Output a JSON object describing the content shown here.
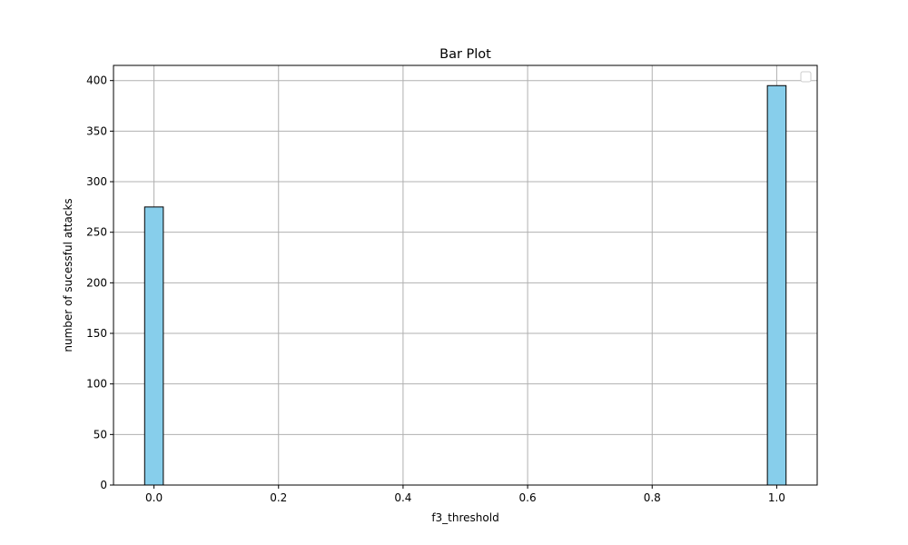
{
  "chart_data": {
    "type": "bar",
    "title": "Bar Plot",
    "xlabel": "f3_threshold",
    "ylabel": "number of sucessful attacks",
    "x": [
      0.0,
      1.0
    ],
    "values": [
      275,
      395
    ],
    "bar_width": 0.03,
    "xlim": [
      -0.065,
      1.065
    ],
    "ylim": [
      0,
      415
    ],
    "xticks": [
      0.0,
      0.2,
      0.4,
      0.6,
      0.8,
      1.0
    ],
    "xtick_labels": [
      "0.0",
      "0.2",
      "0.4",
      "0.6",
      "0.8",
      "1.0"
    ],
    "yticks": [
      0,
      50,
      100,
      150,
      200,
      250,
      300,
      350,
      400
    ],
    "ytick_labels": [
      "0",
      "50",
      "100",
      "150",
      "200",
      "250",
      "300",
      "350",
      "400"
    ],
    "grid": true,
    "legend": "upper right, empty",
    "colors": {
      "bar_fill": "#87ceeb",
      "bar_edge": "#000000",
      "grid": "#b0b0b0"
    }
  }
}
